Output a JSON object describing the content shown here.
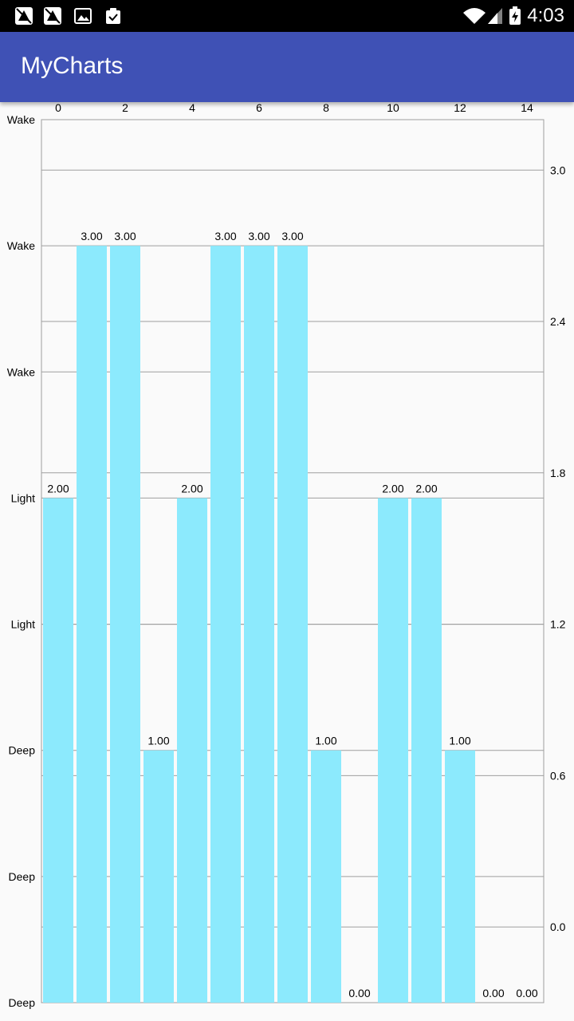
{
  "status_bar": {
    "time": "4:03",
    "icons": [
      "notification-icon",
      "notification-icon",
      "image-icon",
      "clipboard-check-icon",
      "wifi-icon",
      "signal-icon",
      "battery-charging-icon"
    ]
  },
  "app_bar": {
    "title": "MyCharts"
  },
  "chart_data": {
    "type": "bar",
    "x": [
      0,
      1,
      2,
      3,
      4,
      5,
      6,
      7,
      8,
      9,
      10,
      11,
      12,
      13,
      14
    ],
    "x_tick_labels": [
      "0",
      "2",
      "4",
      "6",
      "8",
      "10",
      "12",
      "14"
    ],
    "values": [
      2,
      3,
      3,
      1,
      2,
      3,
      3,
      3,
      1,
      0,
      2,
      2,
      1,
      0,
      0
    ],
    "value_labels": [
      "2.00",
      "3.00",
      "3.00",
      "1.00",
      "2.00",
      "3.00",
      "3.00",
      "3.00",
      "1.00",
      "0.00",
      "2.00",
      "2.00",
      "1.00",
      "0.00",
      "0.00"
    ],
    "left_axis": {
      "ylim": [
        0,
        3.5
      ],
      "tick_labels": [
        "Deep",
        "Deep",
        "Deep",
        "Light",
        "Light",
        "Wake",
        "Wake",
        "Wake"
      ]
    },
    "right_axis": {
      "ylim": [
        -0.3,
        3.2
      ],
      "tick_labels": [
        "0.0",
        "0.6",
        "1.2",
        "1.8",
        "2.4",
        "3.0"
      ],
      "tick_values": [
        0.0,
        0.6,
        1.2,
        1.8,
        2.4,
        3.0
      ]
    },
    "bar_color": "#8ceafd",
    "grid_color": "#9e9e9e",
    "grid": true,
    "xaxis_position": "top"
  }
}
